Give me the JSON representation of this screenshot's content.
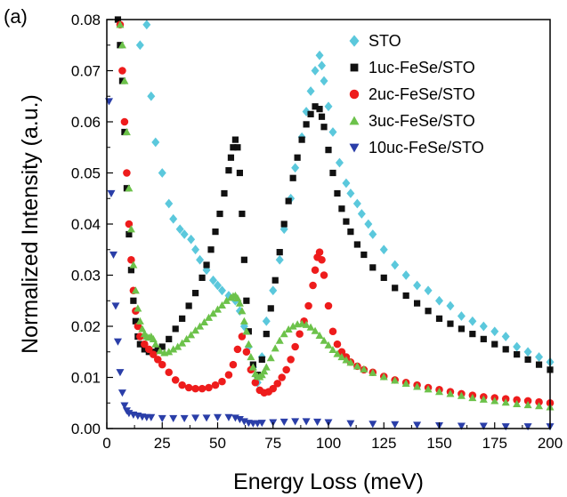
{
  "chart_data": {
    "type": "scatter",
    "panel_label": "(a)",
    "xlabel": "Energy Loss (meV)",
    "ylabel": "Normalized Intensity (a.u.)",
    "xlim": [
      0,
      200
    ],
    "ylim": [
      0,
      0.08
    ],
    "x_ticks": [
      0,
      25,
      50,
      75,
      100,
      125,
      150,
      175,
      200
    ],
    "x_tick_labels": [
      "0",
      "25",
      "50",
      "75",
      "100",
      "125",
      "150",
      "175",
      "200"
    ],
    "y_ticks": [
      0,
      0.01,
      0.02,
      0.03,
      0.04,
      0.05,
      0.06,
      0.07,
      0.08
    ],
    "y_tick_labels": [
      "0.00",
      "0.01",
      "0.02",
      "0.03",
      "0.04",
      "0.05",
      "0.06",
      "0.07",
      "0.08"
    ],
    "grid": false,
    "legend_position": "top-right",
    "series": [
      {
        "name": "STO",
        "color": "#5bc8dc",
        "marker": "diamond",
        "x": [
          15,
          18,
          20,
          22,
          25,
          28,
          30,
          33,
          35,
          38,
          40,
          42,
          45,
          48,
          50,
          52,
          55,
          58,
          60,
          62,
          64,
          66,
          68,
          70,
          72,
          75,
          78,
          80,
          83,
          85,
          88,
          90,
          92,
          94,
          96,
          97,
          98,
          100,
          102,
          105,
          108,
          110,
          113,
          115,
          118,
          120,
          125,
          130,
          135,
          140,
          145,
          150,
          155,
          160,
          165,
          170,
          175,
          180,
          185,
          190,
          195,
          200
        ],
        "y": [
          0.075,
          0.079,
          0.065,
          0.056,
          0.05,
          0.044,
          0.041,
          0.039,
          0.038,
          0.037,
          0.035,
          0.033,
          0.031,
          0.029,
          0.028,
          0.027,
          0.026,
          0.025,
          0.023,
          0.02,
          0.016,
          0.012,
          0.009,
          0.014,
          0.021,
          0.027,
          0.033,
          0.039,
          0.045,
          0.051,
          0.057,
          0.062,
          0.066,
          0.07,
          0.073,
          0.071,
          0.068,
          0.063,
          0.058,
          0.052,
          0.048,
          0.046,
          0.044,
          0.042,
          0.04,
          0.038,
          0.035,
          0.032,
          0.03,
          0.028,
          0.027,
          0.025,
          0.024,
          0.022,
          0.021,
          0.02,
          0.019,
          0.018,
          0.016,
          0.015,
          0.014,
          0.013
        ]
      },
      {
        "name": "1uc-FeSe/STO",
        "color": "#111111",
        "marker": "square",
        "x": [
          5,
          6,
          7,
          8,
          9,
          10,
          11,
          12,
          13,
          14,
          15,
          17,
          19,
          21,
          23,
          25,
          28,
          31,
          34,
          37,
          40,
          43,
          45,
          47,
          49,
          51,
          53,
          55,
          56,
          57,
          58,
          59,
          60,
          61,
          62,
          63,
          64,
          66,
          68,
          70,
          72,
          74,
          76,
          78,
          80,
          82,
          84,
          86,
          88,
          90,
          92,
          94,
          96,
          97,
          98,
          100,
          102,
          104,
          106,
          108,
          110,
          113,
          116,
          120,
          125,
          130,
          135,
          140,
          145,
          150,
          155,
          160,
          165,
          170,
          175,
          180,
          185,
          190,
          195,
          200
        ],
        "y": [
          0.08,
          0.075,
          0.068,
          0.058,
          0.047,
          0.038,
          0.031,
          0.025,
          0.021,
          0.018,
          0.0165,
          0.0155,
          0.015,
          0.015,
          0.0155,
          0.016,
          0.0175,
          0.0195,
          0.0215,
          0.024,
          0.0265,
          0.0295,
          0.032,
          0.035,
          0.0385,
          0.042,
          0.046,
          0.0505,
          0.053,
          0.055,
          0.0565,
          0.055,
          0.05,
          0.042,
          0.033,
          0.025,
          0.019,
          0.0125,
          0.0105,
          0.0135,
          0.0185,
          0.0235,
          0.029,
          0.0345,
          0.04,
          0.0445,
          0.049,
          0.053,
          0.0565,
          0.0595,
          0.0615,
          0.063,
          0.0625,
          0.061,
          0.059,
          0.0545,
          0.05,
          0.046,
          0.043,
          0.0405,
          0.0385,
          0.036,
          0.034,
          0.0315,
          0.0295,
          0.0275,
          0.026,
          0.0245,
          0.023,
          0.0215,
          0.0205,
          0.0195,
          0.0185,
          0.0175,
          0.0165,
          0.0155,
          0.0145,
          0.0135,
          0.0125,
          0.0115
        ]
      },
      {
        "name": "2uc-FeSe/STO",
        "color": "#ee1c1c",
        "marker": "circle",
        "x": [
          6,
          7,
          8,
          9,
          10,
          11,
          12,
          13,
          14,
          15,
          17,
          19,
          21,
          23,
          25,
          28,
          31,
          34,
          37,
          40,
          43,
          46,
          49,
          52,
          55,
          57,
          59,
          61,
          63,
          65,
          67,
          69,
          71,
          73,
          75,
          77,
          79,
          81,
          83,
          85,
          87,
          89,
          91,
          93,
          94,
          95,
          96,
          97,
          98,
          100,
          102,
          104,
          106,
          108,
          110,
          113,
          116,
          120,
          125,
          130,
          135,
          140,
          145,
          150,
          155,
          160,
          165,
          170,
          175,
          180,
          185,
          190,
          195,
          200
        ],
        "y": [
          0.079,
          0.07,
          0.06,
          0.05,
          0.04,
          0.033,
          0.027,
          0.023,
          0.02,
          0.018,
          0.0165,
          0.0155,
          0.0145,
          0.0135,
          0.0125,
          0.011,
          0.0095,
          0.0085,
          0.008,
          0.0078,
          0.0078,
          0.008,
          0.0085,
          0.0092,
          0.0105,
          0.0125,
          0.0155,
          0.018,
          0.015,
          0.0115,
          0.009,
          0.0075,
          0.007,
          0.0072,
          0.0078,
          0.0088,
          0.01,
          0.0115,
          0.0135,
          0.016,
          0.0185,
          0.021,
          0.024,
          0.028,
          0.031,
          0.0335,
          0.0345,
          0.033,
          0.03,
          0.024,
          0.019,
          0.0165,
          0.015,
          0.014,
          0.013,
          0.0122,
          0.0115,
          0.011,
          0.0102,
          0.0095,
          0.009,
          0.0085,
          0.008,
          0.0076,
          0.0072,
          0.0068,
          0.0065,
          0.0062,
          0.006,
          0.0058,
          0.0056,
          0.0054,
          0.0052,
          0.005
        ]
      },
      {
        "name": "3uc-FeSe/STO",
        "color": "#6cc24a",
        "marker": "triangle-up",
        "x": [
          6,
          7,
          8,
          9,
          10,
          11,
          12,
          13,
          14,
          15,
          16,
          17,
          18,
          19,
          20,
          21,
          22,
          24,
          26,
          28,
          30,
          32,
          34,
          36,
          38,
          40,
          42,
          44,
          46,
          48,
          50,
          52,
          54,
          56,
          57,
          58,
          59,
          60,
          61,
          62,
          63,
          64,
          65,
          66,
          67,
          68,
          69,
          70,
          71,
          72,
          74,
          76,
          78,
          80,
          82,
          84,
          86,
          88,
          90,
          92,
          94,
          96,
          98,
          100,
          102,
          104,
          106,
          108,
          110,
          113,
          116,
          120,
          125,
          130,
          135,
          140,
          145,
          150,
          155,
          160,
          165,
          170,
          175,
          180,
          185,
          190,
          195,
          200
        ],
        "y": [
          0.079,
          0.075,
          0.068,
          0.058,
          0.047,
          0.039,
          0.032,
          0.027,
          0.0235,
          0.021,
          0.0195,
          0.0185,
          0.018,
          0.0178,
          0.018,
          0.0175,
          0.0165,
          0.0152,
          0.0148,
          0.015,
          0.0155,
          0.016,
          0.0167,
          0.0175,
          0.0183,
          0.0192,
          0.02,
          0.0208,
          0.0217,
          0.0225,
          0.0233,
          0.0241,
          0.025,
          0.0256,
          0.0259,
          0.026,
          0.0255,
          0.0245,
          0.023,
          0.021,
          0.019,
          0.0165,
          0.014,
          0.012,
          0.0107,
          0.0102,
          0.0101,
          0.0105,
          0.0112,
          0.012,
          0.0138,
          0.0157,
          0.0172,
          0.0185,
          0.0194,
          0.02,
          0.0204,
          0.0205,
          0.0203,
          0.0198,
          0.0191,
          0.0182,
          0.0172,
          0.0163,
          0.0154,
          0.0146,
          0.014,
          0.0134,
          0.0129,
          0.0122,
          0.0116,
          0.0109,
          0.0101,
          0.0094,
          0.0088,
          0.0082,
          0.0077,
          0.0072,
          0.0068,
          0.0064,
          0.006,
          0.0057,
          0.0054,
          0.0051,
          0.0048,
          0.0046,
          0.0044,
          0.0042
        ]
      },
      {
        "name": "10uc-FeSe/STO",
        "color": "#2a3ea8",
        "marker": "triangle-down",
        "x": [
          1,
          2,
          3,
          4,
          5,
          6,
          7,
          8,
          9,
          10,
          12,
          14,
          16,
          18,
          20,
          25,
          30,
          35,
          40,
          45,
          50,
          55,
          58,
          60,
          62,
          64,
          66,
          68,
          70,
          75,
          80,
          85,
          90,
          95,
          100,
          110,
          120,
          130,
          140,
          150,
          160,
          170,
          180,
          190,
          200
        ],
        "y": [
          0.064,
          0.046,
          0.034,
          0.024,
          0.017,
          0.011,
          0.007,
          0.0045,
          0.0035,
          0.003,
          0.0027,
          0.0025,
          0.0023,
          0.0022,
          0.0022,
          0.002,
          0.002,
          0.002,
          0.0021,
          0.0021,
          0.0022,
          0.0022,
          0.0021,
          0.0018,
          0.0014,
          0.0011,
          0.001,
          0.001,
          0.0011,
          0.0012,
          0.0013,
          0.0014,
          0.0014,
          0.0013,
          0.0012,
          0.001,
          0.0009,
          0.0008,
          0.0007,
          0.0006,
          0.0005,
          0.0005,
          0.0004,
          0.0004,
          0.0004
        ]
      }
    ]
  }
}
